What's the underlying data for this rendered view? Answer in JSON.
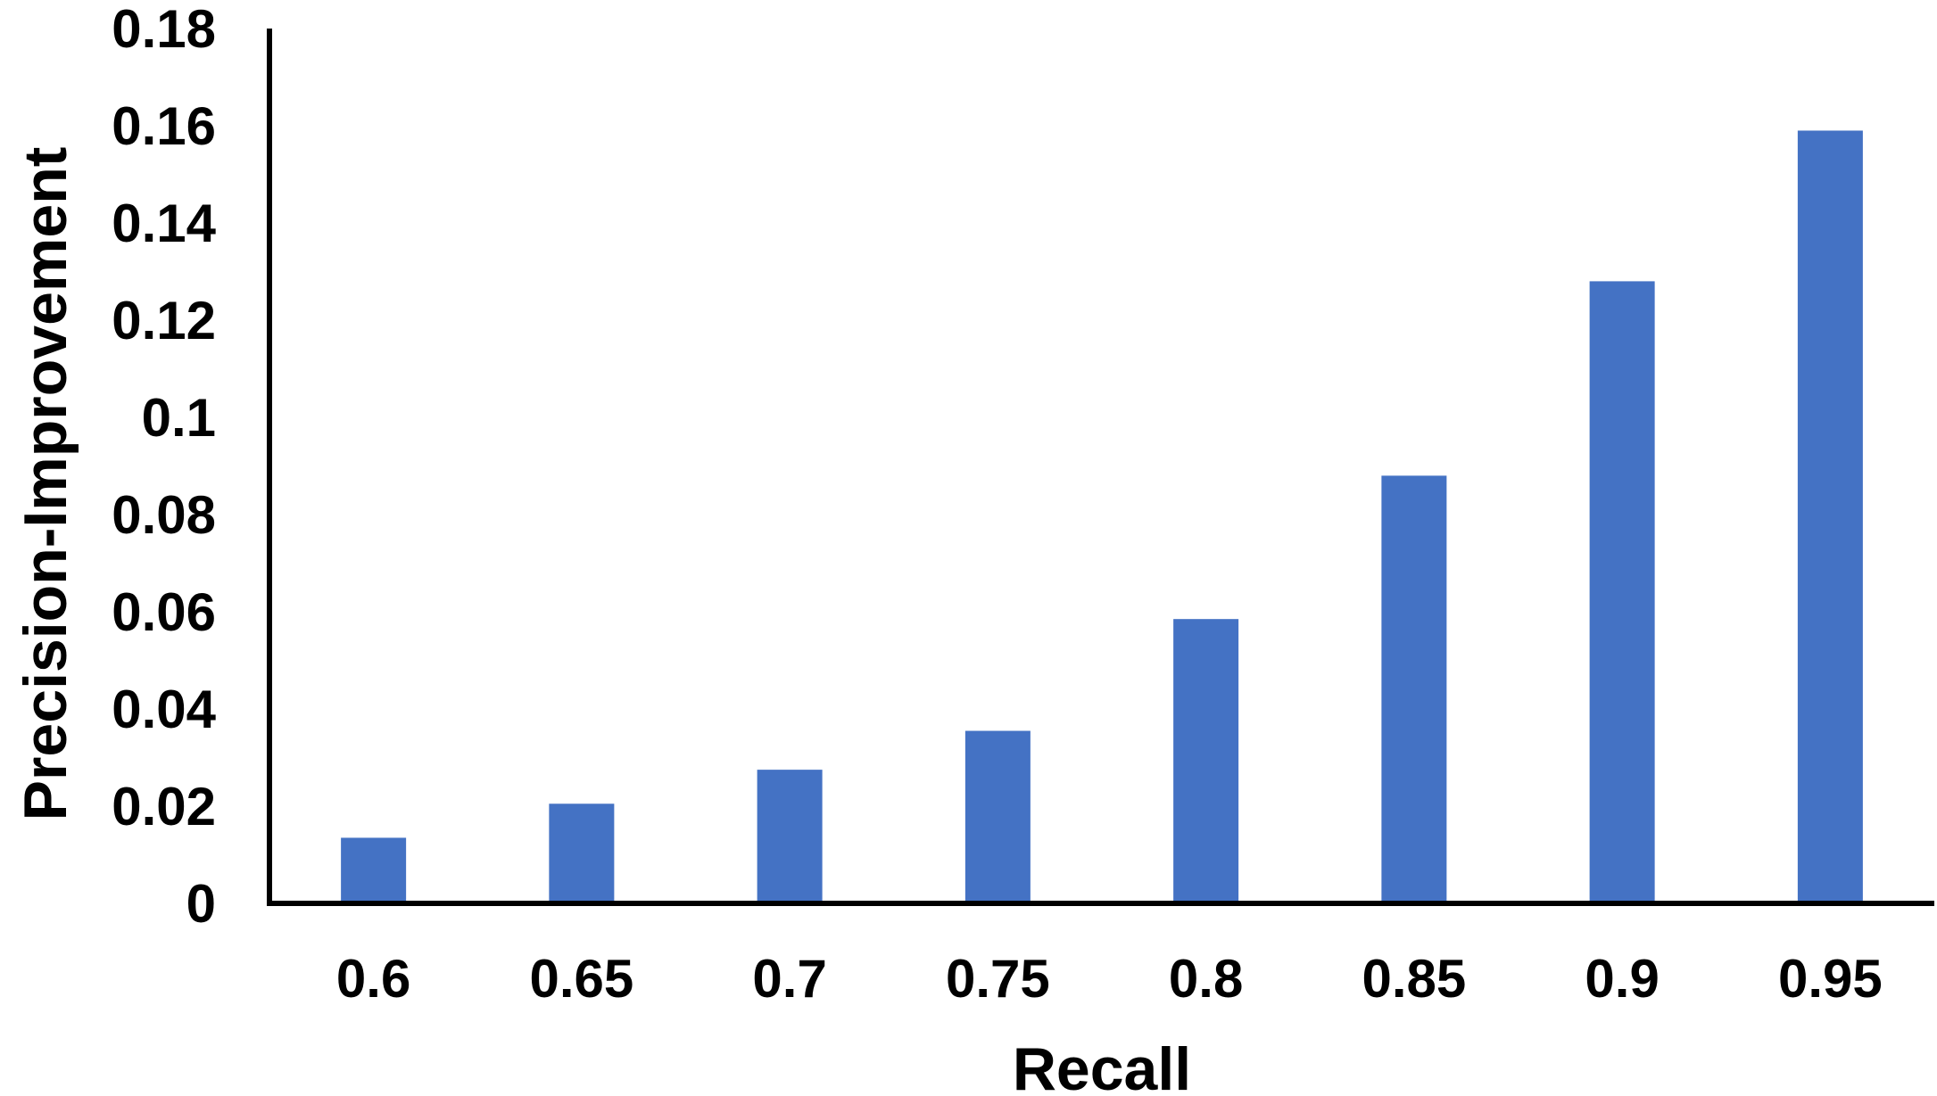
{
  "chart_data": {
    "type": "bar",
    "title": "",
    "xlabel": "Recall",
    "ylabel": "Precision-Improvement",
    "categories": [
      "0.6",
      "0.65",
      "0.7",
      "0.75",
      "0.8",
      "0.85",
      "0.9",
      "0.95"
    ],
    "values": [
      0.0135,
      0.0205,
      0.0275,
      0.0355,
      0.0585,
      0.088,
      0.128,
      0.159
    ],
    "ylim": [
      0,
      0.18
    ],
    "yticks": [
      "0",
      "0.02",
      "0.04",
      "0.06",
      "0.08",
      "0.1",
      "0.12",
      "0.14",
      "0.16",
      "0.18"
    ],
    "grid": false,
    "legend": "none",
    "colors": {
      "bar": "#4472C4",
      "axis": "#000000",
      "text": "#000000"
    }
  }
}
